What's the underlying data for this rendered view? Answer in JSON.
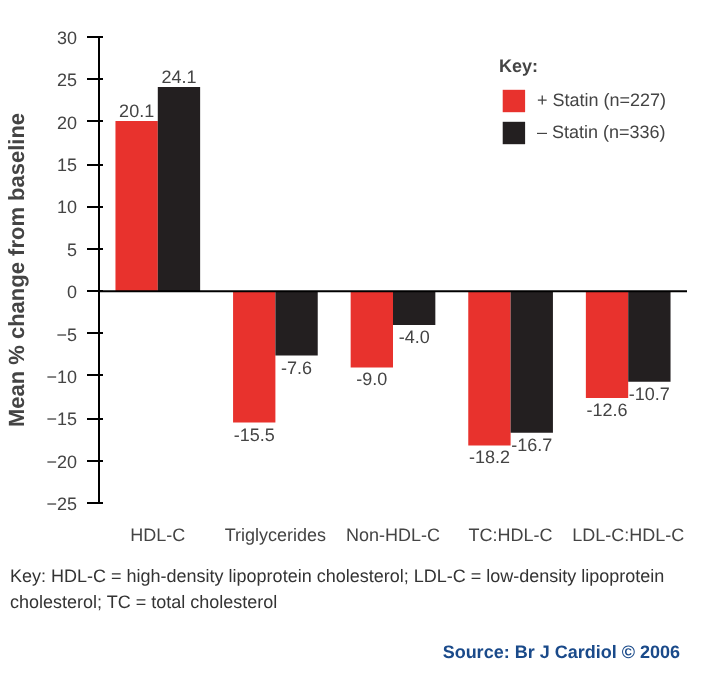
{
  "chart_data": {
    "type": "bar",
    "ylabel": "Mean % change from baseline",
    "legend_title": "Key:",
    "categories": [
      "HDL-C",
      "Triglycerides",
      "Non-HDL-C",
      "TC:HDL-C",
      "LDL-C:HDL-C"
    ],
    "series": [
      {
        "name": "+ Statin (n=227)",
        "color": "#e8322d",
        "values": [
          20.1,
          -15.5,
          -9.0,
          -18.2,
          -12.6
        ]
      },
      {
        "name": "– Statin (n=336)",
        "color": "#231f20",
        "values": [
          24.1,
          -7.6,
          -4.0,
          -16.7,
          -10.7
        ]
      }
    ],
    "value_labels": [
      [
        "20.1",
        "-15.5",
        "-9.0",
        "-18.2",
        "-12.6"
      ],
      [
        "24.1",
        "-7.6",
        "-4.0",
        "-16.7",
        "-10.7"
      ]
    ],
    "ylim": [
      -25,
      30
    ],
    "yticks": [
      -25,
      -20,
      -15,
      -10,
      -5,
      0,
      5,
      10,
      15,
      20,
      25,
      30
    ],
    "grid": false,
    "ref_lines": [
      {
        "axis": "y",
        "value": 0,
        "color": "#000000"
      }
    ],
    "legend": "top right",
    "annotations": [
      "Key: HDL-C = high-density lipoprotein cholesterol; LDL-C = low-density lipoprotein cholesterol; TC = total cholesterol",
      "Source: Br J Cardiol © 2006"
    ]
  }
}
